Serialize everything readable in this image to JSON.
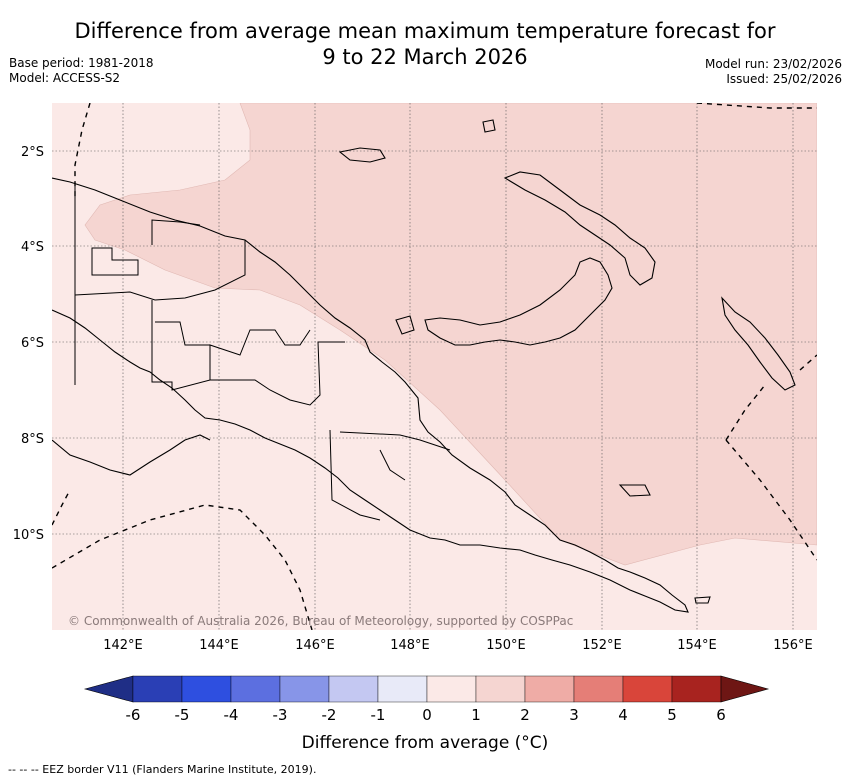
{
  "title": {
    "line1": "Difference from average mean maximum temperature forecast for",
    "line2": "9 to 22 March 2026"
  },
  "meta_left": {
    "base_period": "Base period: 1981-2018",
    "model": "Model: ACCESS-S2"
  },
  "meta_right": {
    "model_run": "Model run: 23/02/2026",
    "issued": "Issued: 25/02/2026"
  },
  "map": {
    "lat_labels": [
      "2°S",
      "4°S",
      "6°S",
      "8°S",
      "10°S"
    ],
    "lon_labels": [
      "142°E",
      "144°E",
      "146°E",
      "148°E",
      "150°E",
      "152°E",
      "154°E",
      "156°E"
    ],
    "copyright": "© Commonwealth of Australia 2026, Bureau of Meteorology, supported by COSPPac",
    "fill_colors": {
      "anomaly_0_to_1": "#fbe9e7",
      "anomaly_1_to_2": "#f5d5d1"
    }
  },
  "colorbar": {
    "tick_labels": [
      "-6",
      "-5",
      "-4",
      "-3",
      "-2",
      "-1",
      "0",
      "1",
      "2",
      "3",
      "4",
      "5",
      "6"
    ],
    "colors": [
      "#1f2e86",
      "#2a3fb5",
      "#2e4fe0",
      "#5c6fe0",
      "#8795e8",
      "#c4c8f2",
      "#e8eaf8",
      "#fbe9e7",
      "#f5d5d1",
      "#efaca6",
      "#e57e77",
      "#d9453a",
      "#a8231f",
      "#6e1614"
    ],
    "label": "Difference from average (°C)"
  },
  "footnote": "-- -- -- EEZ border V11 (Flanders Marine Institute, 2019)."
}
